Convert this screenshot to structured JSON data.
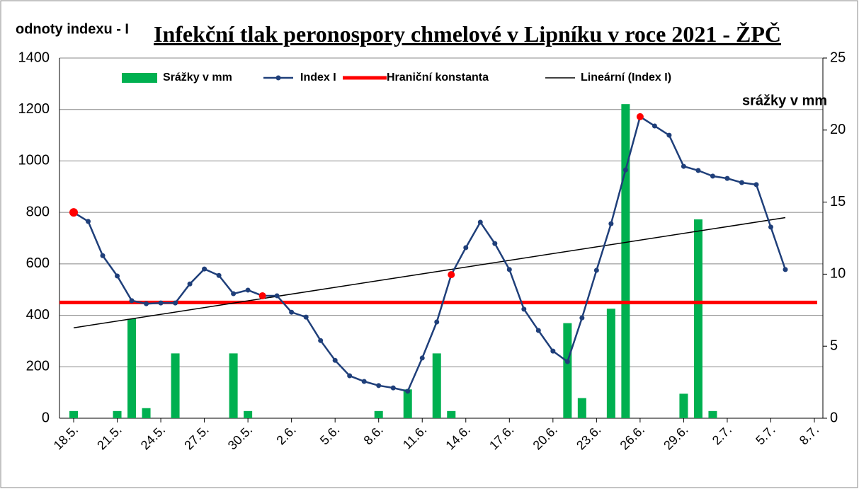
{
  "chart_data": {
    "type": "bar-line",
    "title": "Infekční tlak peronospory chmelové  v Lipníku v roce 2021 - ŽPČ",
    "y_label": "odnoty indexu - I",
    "y2_label": "srážky v mm",
    "categories": [
      "18.5.",
      null,
      null,
      "21.5.",
      null,
      null,
      "24.5.",
      null,
      null,
      "27.5.",
      null,
      null,
      "30.5.",
      null,
      null,
      "2.6.",
      null,
      null,
      "5.6.",
      null,
      null,
      "8.6.",
      null,
      null,
      "11.6.",
      null,
      null,
      "14.6.",
      null,
      null,
      "17.6.",
      null,
      null,
      "20.6.",
      null,
      null,
      "23.6.",
      null,
      null,
      "26.6.",
      null,
      null,
      "29.6.",
      null,
      null,
      "2.7.",
      null,
      null,
      "5.7.",
      null,
      null,
      "8.7."
    ],
    "series": [
      {
        "name": "Srážky v mm",
        "type": "bar",
        "axis": "y2",
        "color": "#00b050",
        "values": [
          0.5,
          null,
          null,
          0.5,
          6.9,
          0.7,
          null,
          4.5,
          null,
          null,
          null,
          4.5,
          0.5,
          null,
          null,
          null,
          null,
          null,
          null,
          null,
          null,
          0.5,
          null,
          2.0,
          null,
          4.5,
          0.5,
          null,
          null,
          null,
          null,
          null,
          null,
          null,
          6.6,
          1.4,
          null,
          7.6,
          21.8,
          null,
          null,
          null,
          1.7,
          13.8,
          0.5,
          null,
          null,
          null,
          null,
          null,
          null,
          null
        ]
      },
      {
        "name": "Index I",
        "type": "line",
        "color": "#1f3f7a",
        "highlight_color": "#ff0000",
        "highlighted": [
          0,
          13,
          26,
          39
        ],
        "values": [
          800,
          765,
          632,
          553,
          457,
          445,
          448,
          448,
          522,
          580,
          555,
          484,
          498,
          476,
          476,
          412,
          393,
          302,
          225,
          165,
          143,
          127,
          118,
          105,
          234,
          374,
          558,
          663,
          762,
          679,
          578,
          424,
          341,
          261,
          220,
          390,
          575,
          756,
          965,
          1172,
          1136,
          1100,
          979,
          963,
          941,
          932,
          916,
          908,
          743,
          578,
          null,
          null
        ]
      }
    ],
    "threshold": {
      "name": "Hraniční konstanta",
      "color": "#ff0000",
      "value": 450
    },
    "trend": {
      "name": "Lineární (Index I)",
      "color": "#000000",
      "of": "Index I"
    },
    "ylim": [
      0,
      1400
    ],
    "yticks": [
      0,
      200,
      400,
      600,
      800,
      1000,
      1200,
      1400
    ],
    "y2lim": [
      0,
      25
    ],
    "y2ticks": [
      0,
      5,
      10,
      15,
      20,
      25
    ],
    "grid": true
  }
}
